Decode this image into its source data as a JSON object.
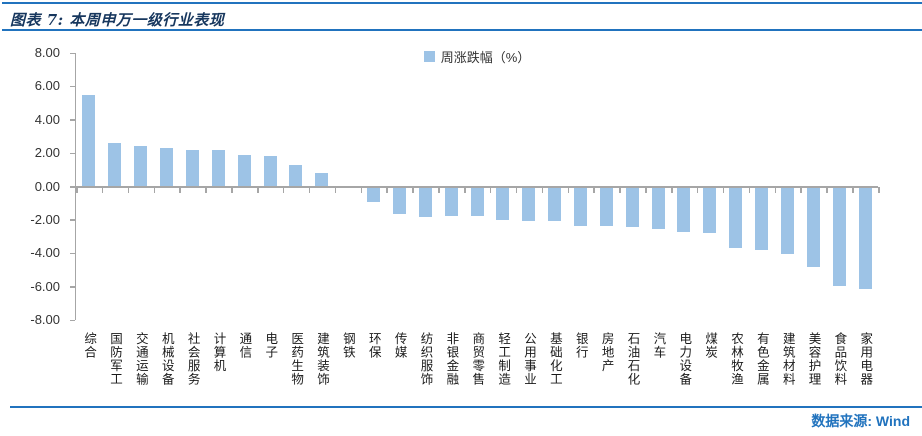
{
  "header": {
    "title": "图表 7: 本周申万一级行业表现"
  },
  "footer": {
    "source_label": "数据来源: Wind"
  },
  "chart_data": {
    "type": "bar",
    "title": "本周申万一级行业表现",
    "legend": [
      {
        "label": "周涨跌幅（%）",
        "color": "#9DC3E6"
      }
    ],
    "legend_position": "top-center",
    "xlabel": "",
    "ylabel": "",
    "categories": [
      "综合",
      "国防军工",
      "交通运输",
      "机械设备",
      "社会服务",
      "计算机",
      "通信",
      "电子",
      "医药生物",
      "建筑装饰",
      "钢铁",
      "环保",
      "传媒",
      "纺织服饰",
      "非银金融",
      "商贸零售",
      "轻工制造",
      "公用事业",
      "基础化工",
      "银行",
      "房地产",
      "石油石化",
      "汽车",
      "电力设备",
      "煤炭",
      "农林牧渔",
      "有色金属",
      "建筑材料",
      "美容护理",
      "食品饮料",
      "家用电器"
    ],
    "values": [
      5.48,
      2.61,
      2.42,
      2.28,
      2.2,
      2.18,
      1.9,
      1.82,
      1.3,
      0.8,
      0.0,
      -0.85,
      -1.6,
      -1.76,
      -1.72,
      -1.7,
      -1.93,
      -2.02,
      -1.99,
      -2.28,
      -2.3,
      -2.35,
      -2.5,
      -2.66,
      -2.73,
      -3.63,
      -3.73,
      -4.0,
      -4.75,
      -5.93,
      -6.07
    ],
    "ylim": [
      -8,
      8
    ],
    "ytick_step": 2,
    "ytick_labels": [
      "8.00",
      "6.00",
      "4.00",
      "2.00",
      "0.00",
      "-2.00",
      "-4.00",
      "-6.00",
      "-8.00"
    ],
    "grid": false,
    "bar_color": "#9DC3E6"
  },
  "colors": {
    "bar": "#9DC3E6",
    "rule_blue": "#2173BE",
    "title_navy": "#17375E",
    "axis_gray": "#A6A6A6",
    "source_blue": "#2173BE"
  }
}
